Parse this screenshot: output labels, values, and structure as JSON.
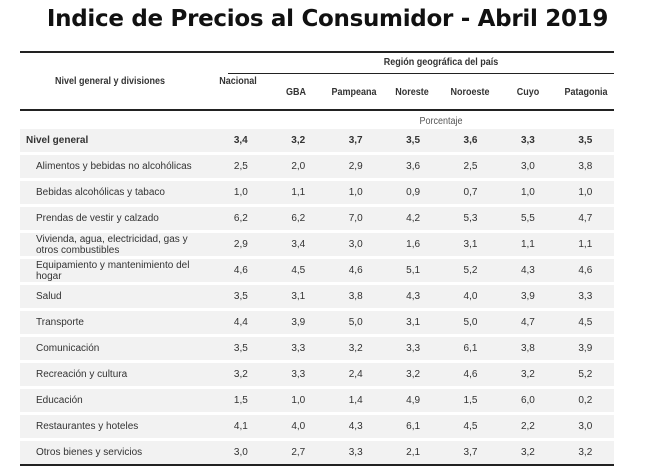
{
  "title": "Indice de Precios al Consumidor - Abril 2019",
  "header": {
    "division": "Nivel general y divisiones",
    "nacional": "Nacional",
    "region": "Región geográfica del país",
    "regions": [
      "GBA",
      "Pampeana",
      "Noreste",
      "Noroeste",
      "Cuyo",
      "Patagonia"
    ],
    "unit": "Porcentaje"
  },
  "rows": [
    {
      "label": "Nivel general",
      "values": [
        "3,4",
        "3,2",
        "3,7",
        "3,5",
        "3,6",
        "3,3",
        "3,5"
      ]
    },
    {
      "label": "Alimentos y bebidas no alcohólicas",
      "values": [
        "2,5",
        "2,0",
        "2,9",
        "3,6",
        "2,5",
        "3,0",
        "3,8"
      ]
    },
    {
      "label": "Bebidas alcohólicas y tabaco",
      "values": [
        "1,0",
        "1,1",
        "1,0",
        "0,9",
        "0,7",
        "1,0",
        "1,0"
      ]
    },
    {
      "label": "Prendas de vestir y calzado",
      "values": [
        "6,2",
        "6,2",
        "7,0",
        "4,2",
        "5,3",
        "5,5",
        "4,7"
      ]
    },
    {
      "label": "Vivienda, agua, electricidad, gas y otros combustibles",
      "values": [
        "2,9",
        "3,4",
        "3,0",
        "1,6",
        "3,1",
        "1,1",
        "1,1"
      ]
    },
    {
      "label": "Equipamiento y mantenimiento del hogar",
      "values": [
        "4,6",
        "4,5",
        "4,6",
        "5,1",
        "5,2",
        "4,3",
        "4,6"
      ]
    },
    {
      "label": "Salud",
      "values": [
        "3,5",
        "3,1",
        "3,8",
        "4,3",
        "4,0",
        "3,9",
        "3,3"
      ]
    },
    {
      "label": "Transporte",
      "values": [
        "4,4",
        "3,9",
        "5,0",
        "3,1",
        "5,0",
        "4,7",
        "4,5"
      ]
    },
    {
      "label": "Comunicación",
      "values": [
        "3,5",
        "3,3",
        "3,2",
        "3,3",
        "6,1",
        "3,8",
        "3,9"
      ]
    },
    {
      "label": "Recreación y cultura",
      "values": [
        "3,2",
        "3,3",
        "2,4",
        "3,2",
        "4,6",
        "3,2",
        "5,2"
      ]
    },
    {
      "label": "Educación",
      "values": [
        "1,5",
        "1,0",
        "1,4",
        "4,9",
        "1,5",
        "6,0",
        "0,2"
      ]
    },
    {
      "label": "Restaurantes y hoteles",
      "values": [
        "4,1",
        "4,0",
        "4,3",
        "6,1",
        "4,5",
        "2,2",
        "3,0"
      ]
    },
    {
      "label": "Otros bienes y servicios",
      "values": [
        "3,0",
        "2,7",
        "3,3",
        "2,1",
        "3,7",
        "3,2",
        "3,2"
      ]
    }
  ]
}
